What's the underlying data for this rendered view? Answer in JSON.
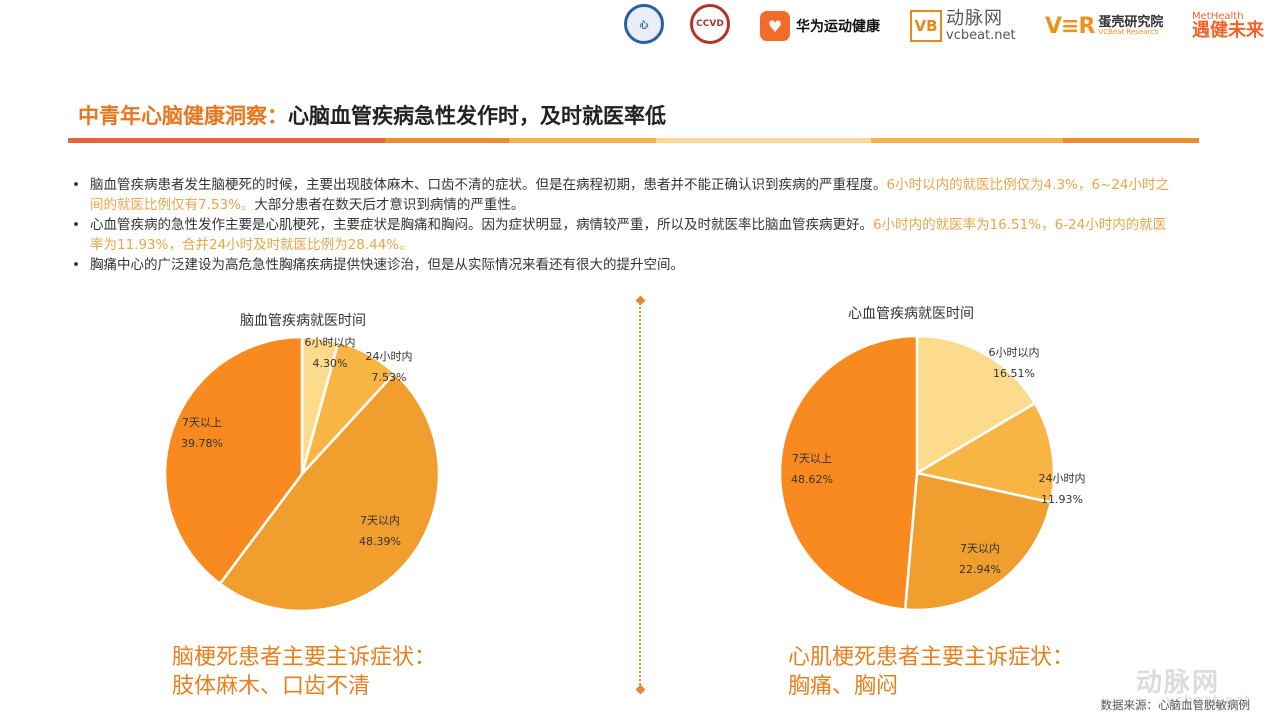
{
  "logos": {
    "seal1": "心",
    "seal2": "CCVD",
    "huawei": {
      "icon": "heart-icon",
      "text": "华为运动健康"
    },
    "vcbeat": {
      "mark": "VB",
      "name": "动脉网",
      "url_text": "vcbeat.net"
    },
    "vbr": {
      "mark": "V≡R",
      "name": "蛋壳研究院",
      "sub": "VCBeat Research"
    },
    "methealth": {
      "top": "MetHealth",
      "bottom": "遇健未来"
    }
  },
  "header": {
    "title_accent": "中青年心脑健康洞察：",
    "title_main": "心脑血管疾病急性发作时，及时就医率低",
    "bar_colors": [
      "#e8643a",
      "#ef8c2a",
      "#f5b248",
      "#fbd89a",
      "#f5b248",
      "#ef8c2a"
    ]
  },
  "bullets": [
    {
      "text": "脑血管疾病患者发生脑梗死的时候，主要出现肢体麻木、口齿不清的症状。但是在病程初期，患者并不能正确认识到疾病的严重程度。",
      "highlight": "6小时以内的就医比例仅为4.3%，6~24小时之间的就医比例仅有7.53%。",
      "tail": "大部分患者在数天后才意识到病情的严重性。"
    },
    {
      "text": "心血管疾病的急性发作主要是心肌梗死，主要症状是胸痛和胸闷。因为症状明显，病情较严重，所以及时就医率比脑血管疾病更好。",
      "highlight": "6小时内的就医率为16.51%，6-24小时内的就医率为11.93%，合并24小时及时就医比例为28.44%。",
      "tail": ""
    },
    {
      "text": "胸痛中心的广泛建设为高危急性胸痛疾病提供快速诊治，但是从实际情况来看还有很大的提升空间。",
      "highlight": "",
      "tail": ""
    }
  ],
  "colors": {
    "accent": "#e8761e",
    "highlight_text": "#eaa548",
    "slice_6h": "#fddb8c",
    "slice_24h": "#f9b544",
    "slice_7d_within": "#f09f2e",
    "slice_7d_plus": "#f98a1f"
  },
  "chart_data": [
    {
      "type": "pie",
      "title": "脑血管疾病就医时间",
      "categories": [
        "6小时以内",
        "24小时内",
        "7天以内",
        "7天以上"
      ],
      "values": [
        4.3,
        7.53,
        48.39,
        39.78
      ],
      "value_labels": [
        "4.30%",
        "7.53%",
        "48.39%",
        "39.78%"
      ],
      "start_angle": "12 o'clock, clockwise",
      "legend": "none (inline labels)"
    },
    {
      "type": "pie",
      "title": "心血管疾病就医时间",
      "categories": [
        "6小时以内",
        "24小时内",
        "7天以内",
        "7天以上"
      ],
      "values": [
        16.51,
        11.93,
        22.94,
        48.62
      ],
      "value_labels": [
        "16.51%",
        "11.93%",
        "22.94%",
        "48.62%"
      ],
      "start_angle": "12 o'clock, clockwise",
      "legend": "none (inline labels)"
    }
  ],
  "captions": {
    "left": [
      "脑梗死患者主要主诉症状：",
      "肢体麻木、口齿不清"
    ],
    "right": [
      "心肌梗死患者主要主诉症状：",
      "胸痛、胸闷"
    ]
  },
  "footer": {
    "source": "数据来源：心脑血管脱敏病例",
    "watermark_name": "动脉网",
    "watermark_url": "vcbeat.net"
  }
}
